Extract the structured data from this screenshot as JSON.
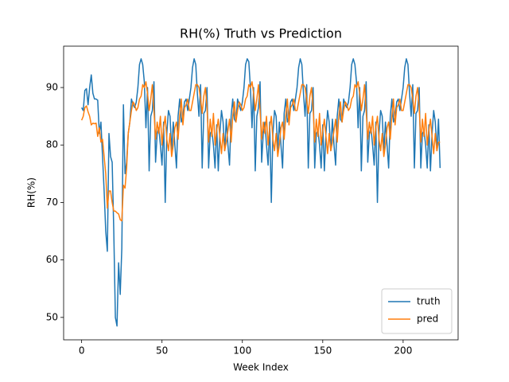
{
  "chart_data": {
    "type": "line",
    "title": "RH(%) Truth vs Prediction",
    "x_label": "Week Index",
    "y_label": "RH(%)",
    "x": [
      0,
      1,
      2,
      3,
      4,
      5,
      6,
      7,
      8,
      9,
      10,
      11,
      12,
      13,
      14,
      15,
      16,
      17,
      18,
      19,
      20,
      21,
      22,
      23,
      24,
      25,
      26,
      27,
      28,
      29,
      30,
      31,
      32,
      33,
      34,
      35,
      36,
      37,
      38,
      39,
      40,
      41,
      42,
      43,
      44,
      45,
      46,
      47,
      48,
      49,
      50,
      51,
      52,
      53,
      54,
      55,
      56,
      57,
      58,
      59,
      60,
      61,
      62,
      63,
      64,
      65,
      66,
      67,
      68,
      69,
      70,
      71,
      72,
      73,
      74,
      75,
      76,
      77,
      78,
      79,
      80,
      81,
      82,
      83,
      84,
      85,
      86,
      87,
      88,
      89,
      90,
      91,
      92,
      93,
      94,
      95,
      96,
      97,
      98,
      99,
      100,
      101,
      102,
      103,
      104,
      105,
      106,
      107,
      108,
      109,
      110,
      111,
      112,
      113,
      114,
      115,
      116,
      117,
      118,
      119,
      120,
      121,
      122,
      123,
      124,
      125,
      126,
      127,
      128,
      129,
      130,
      131,
      132,
      133,
      134,
      135,
      136,
      137,
      138,
      139,
      140,
      141,
      142,
      143,
      144,
      145,
      146,
      147,
      148,
      149,
      150,
      151,
      152,
      153,
      154,
      155,
      156,
      157,
      158,
      159,
      160,
      161,
      162,
      163,
      164,
      165,
      166,
      167,
      168,
      169,
      170,
      171,
      172,
      173,
      174,
      175,
      176,
      177,
      178,
      179,
      180,
      181,
      182,
      183,
      184,
      185,
      186,
      187,
      188,
      189,
      190,
      191,
      192,
      193,
      194,
      195,
      196,
      197,
      198,
      199,
      200,
      201,
      202,
      203,
      204,
      205,
      206,
      207,
      208,
      209,
      210,
      211,
      212,
      213,
      214,
      215,
      216,
      217,
      218,
      219,
      220,
      221,
      222,
      223
    ],
    "series": [
      {
        "name": "truth",
        "color": "#1f77b4",
        "values": [
          86.5,
          86,
          89.5,
          89.8,
          87,
          90,
          92.2,
          89,
          88,
          88,
          87.8,
          82,
          84,
          78,
          72,
          65,
          61.5,
          82,
          78,
          77,
          65,
          50,
          48.5,
          59.5,
          54,
          62,
          87,
          75,
          77,
          82,
          84,
          88,
          87,
          86.5,
          87.5,
          90,
          94,
          95,
          94,
          91,
          83,
          90,
          75.5,
          85,
          86,
          91,
          77,
          82,
          83,
          80,
          76.5,
          84,
          70,
          82,
          86,
          85,
          79,
          84,
          80,
          76,
          85,
          88,
          84,
          85,
          87.5,
          88,
          86,
          88,
          90,
          93.5,
          95,
          94,
          89,
          85,
          90.5,
          76,
          85.5,
          86,
          90,
          76,
          82,
          82.5,
          80,
          76,
          83.5,
          75.5,
          82,
          86,
          84,
          79,
          84.5,
          80,
          76.5,
          85,
          88,
          84.5,
          84,
          88,
          87,
          86,
          87.5,
          90,
          94,
          95,
          94.5,
          90,
          83,
          90,
          75.5,
          85,
          86.5,
          91,
          77,
          82,
          84,
          80,
          76.5,
          84,
          70,
          82,
          86,
          85,
          79,
          84,
          80,
          76,
          85.5,
          88,
          84,
          85,
          87.5,
          88,
          86,
          88,
          90,
          93.5,
          95,
          94,
          89,
          85,
          90.5,
          76,
          85.5,
          86,
          90,
          76,
          82,
          82.5,
          80,
          76,
          83.5,
          75.5,
          82,
          86,
          84,
          79,
          84.5,
          80,
          76.5,
          85,
          88,
          84.5,
          84,
          88,
          87,
          86.5,
          87.5,
          90,
          94,
          95,
          94,
          91,
          83,
          90,
          75.5,
          85,
          86,
          91,
          77,
          82,
          83,
          80,
          76.5,
          84,
          70,
          82,
          86,
          85,
          79,
          84,
          80,
          76,
          85,
          88,
          84,
          85,
          87.5,
          88,
          86,
          88,
          90,
          93.5,
          95,
          94,
          89,
          85,
          90.5,
          76,
          85.5,
          86,
          90,
          76,
          82,
          82.5,
          80,
          76,
          83.5,
          75.5,
          82,
          86,
          84,
          79,
          84.5,
          76
        ]
      },
      {
        "name": "pred",
        "color": "#ff7f0e",
        "values": [
          84.3,
          85,
          86.5,
          86.8,
          85.8,
          85,
          83.5,
          83.8,
          83.7,
          83.8,
          81.5,
          83,
          80.5,
          81,
          78,
          75,
          69,
          72,
          72,
          70,
          68.5,
          68.5,
          68.2,
          68,
          67,
          66.8,
          73,
          72.5,
          76,
          82,
          84,
          86,
          87.5,
          87,
          86,
          86.5,
          88,
          88.5,
          90.5,
          90,
          91,
          89,
          86,
          88,
          90.5,
          86,
          81,
          84,
          82,
          85,
          80,
          83,
          85,
          81,
          79,
          82,
          78,
          80,
          83,
          84,
          81,
          85,
          88,
          83.5,
          86.5,
          87,
          88,
          86,
          86,
          87.5,
          89,
          90.5,
          90.5,
          90,
          88,
          85.5,
          88.5,
          90,
          86.5,
          80.5,
          84.5,
          81.5,
          85.5,
          80,
          82.5,
          84.5,
          81.5,
          78.5,
          82,
          79,
          80.5,
          82.5,
          84.5,
          80.5,
          85,
          87.5,
          84,
          86,
          87.5,
          87,
          86,
          86.5,
          88,
          88.5,
          90.5,
          90,
          91,
          89,
          86,
          88,
          90.5,
          86,
          81,
          84,
          82,
          85,
          80,
          83,
          85,
          81,
          79,
          82,
          78,
          80,
          83,
          84,
          81,
          85,
          88,
          83.5,
          86.5,
          87,
          88,
          86,
          86,
          87.5,
          89,
          90.5,
          90.5,
          90,
          88,
          85.5,
          88.5,
          90,
          86.5,
          80.5,
          84.5,
          81.5,
          85.5,
          80,
          82.5,
          84.5,
          81.5,
          78.5,
          82,
          79,
          80.5,
          82.5,
          84.5,
          80.5,
          85,
          87.5,
          84,
          86,
          87.5,
          87,
          86,
          86.5,
          88,
          88.5,
          90.5,
          90,
          91,
          89,
          86,
          88,
          90.5,
          86,
          81,
          84,
          82,
          85,
          80,
          83,
          85,
          81,
          79,
          82,
          78,
          80,
          83,
          84,
          81,
          85,
          88,
          83.5,
          86.5,
          87,
          88,
          86,
          86,
          87.5,
          89,
          90.5,
          90.5,
          90,
          88,
          85.5,
          88.5,
          90,
          86.5,
          80.5,
          84.5,
          81.5,
          85.5,
          80,
          82.5,
          84.5,
          81.5,
          78.5,
          82,
          79,
          80.5,
          80.5
        ]
      }
    ],
    "xlim": [
      -11.2,
      234.2
    ],
    "xticks": [
      0,
      50,
      100,
      150,
      200
    ],
    "ylim": [
      46.1,
      97.2
    ],
    "yticks": [
      50,
      60,
      70,
      80,
      90
    ],
    "legend": "lower right"
  }
}
